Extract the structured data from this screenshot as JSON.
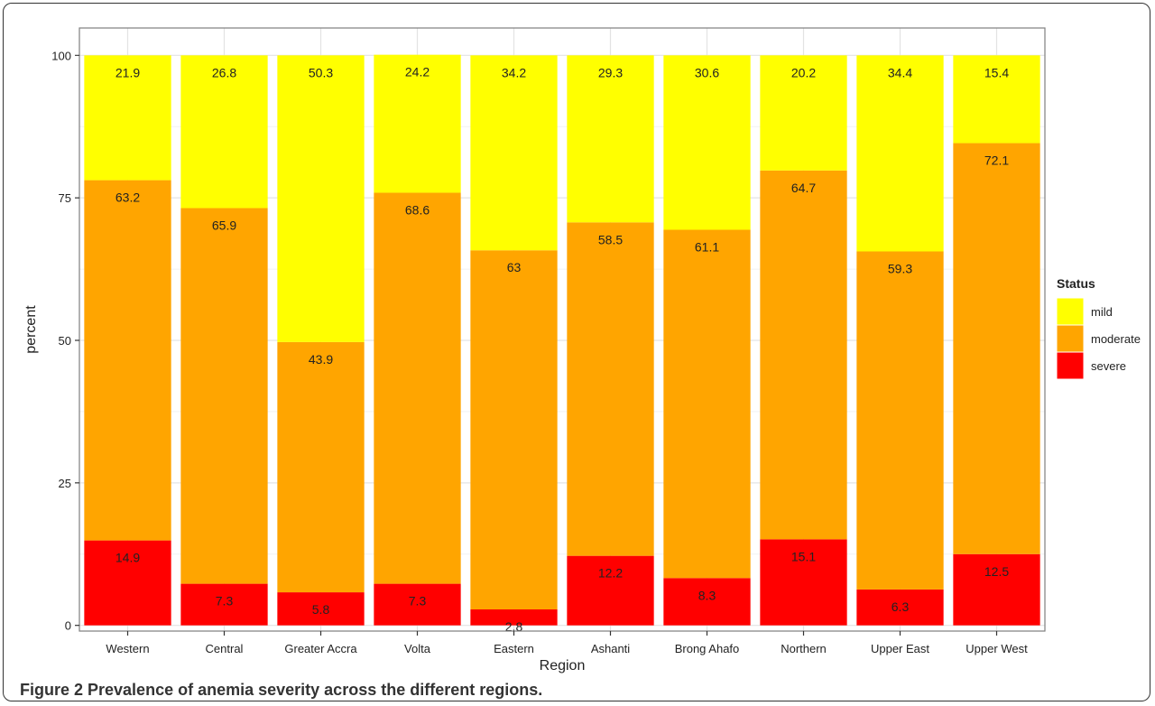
{
  "chart_data": {
    "type": "bar",
    "stacked": true,
    "xlabel": "Region",
    "ylabel": "percent",
    "ylim": [
      0,
      100
    ],
    "yticks": [
      0,
      25,
      50,
      75,
      100
    ],
    "grid": true,
    "legend_title": "Status",
    "legend_position": "right",
    "categories": [
      "Western",
      "Central",
      "Greater Accra",
      "Volta",
      "Eastern",
      "Ashanti",
      "Brong Ahafo",
      "Northern",
      "Upper East",
      "Upper West"
    ],
    "series": [
      {
        "name": "severe",
        "color": "#ff0000",
        "values": [
          14.9,
          7.3,
          5.8,
          7.3,
          2.8,
          12.2,
          8.3,
          15.1,
          6.3,
          12.5
        ],
        "labels": [
          "14.9",
          "7.3",
          "5.8",
          "7.3",
          "2.8",
          "12.2",
          "8.3",
          "15.1",
          "6.3",
          "12.5"
        ]
      },
      {
        "name": "moderate",
        "color": "#ffa500",
        "values": [
          63.2,
          65.9,
          43.9,
          68.6,
          63,
          58.5,
          61.1,
          64.7,
          59.3,
          72.1
        ],
        "labels": [
          "63.2",
          "65.9",
          "43.9",
          "68.6",
          "63",
          "58.5",
          "61.1",
          "64.7",
          "59.3",
          "72.1"
        ]
      },
      {
        "name": "mild",
        "color": "#ffff00",
        "values": [
          21.9,
          26.8,
          50.3,
          24.2,
          34.2,
          29.3,
          30.6,
          20.2,
          34.4,
          15.4
        ],
        "labels": [
          "21.9",
          "26.8",
          "50.3",
          "24.2",
          "34.2",
          "29.3",
          "30.6",
          "20.2",
          "34.4",
          "15.4"
        ]
      }
    ],
    "legend_order": [
      "mild",
      "moderate",
      "severe"
    ]
  },
  "caption": {
    "bold": "Figure 2 Prevalence of anemia severity across the different regions.",
    "rest": ""
  }
}
